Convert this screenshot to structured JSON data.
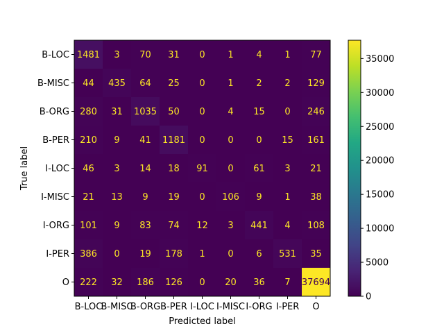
{
  "chart_data": {
    "type": "heatmap",
    "title": "",
    "xlabel": "Predicted label",
    "ylabel": "True label",
    "x_categories": [
      "B-LOC",
      "B-MISC",
      "B-ORG",
      "B-PER",
      "I-LOC",
      "I-MISC",
      "I-ORG",
      "I-PER",
      "O"
    ],
    "y_categories": [
      "B-LOC",
      "B-MISC",
      "B-ORG",
      "B-PER",
      "I-LOC",
      "I-MISC",
      "I-ORG",
      "I-PER",
      "O"
    ],
    "matrix": [
      [
        1481,
        3,
        70,
        31,
        0,
        1,
        4,
        1,
        77
      ],
      [
        44,
        435,
        64,
        25,
        0,
        1,
        2,
        2,
        129
      ],
      [
        280,
        31,
        1035,
        50,
        0,
        4,
        15,
        0,
        246
      ],
      [
        210,
        9,
        41,
        1181,
        0,
        0,
        0,
        15,
        161
      ],
      [
        46,
        3,
        14,
        18,
        91,
        0,
        61,
        3,
        21
      ],
      [
        21,
        13,
        9,
        19,
        0,
        106,
        9,
        1,
        38
      ],
      [
        101,
        9,
        83,
        74,
        12,
        3,
        441,
        4,
        108
      ],
      [
        386,
        0,
        19,
        178,
        1,
        0,
        6,
        531,
        35
      ],
      [
        222,
        32,
        186,
        126,
        0,
        20,
        36,
        7,
        37694
      ]
    ],
    "colormap": "viridis",
    "colorbar": {
      "min": 0,
      "max": 37694,
      "ticks": [
        0,
        5000,
        10000,
        15000,
        20000,
        25000,
        30000,
        35000
      ]
    },
    "text_color_dark_cells": "#fde725",
    "text_color_light_cells": "#440154"
  }
}
